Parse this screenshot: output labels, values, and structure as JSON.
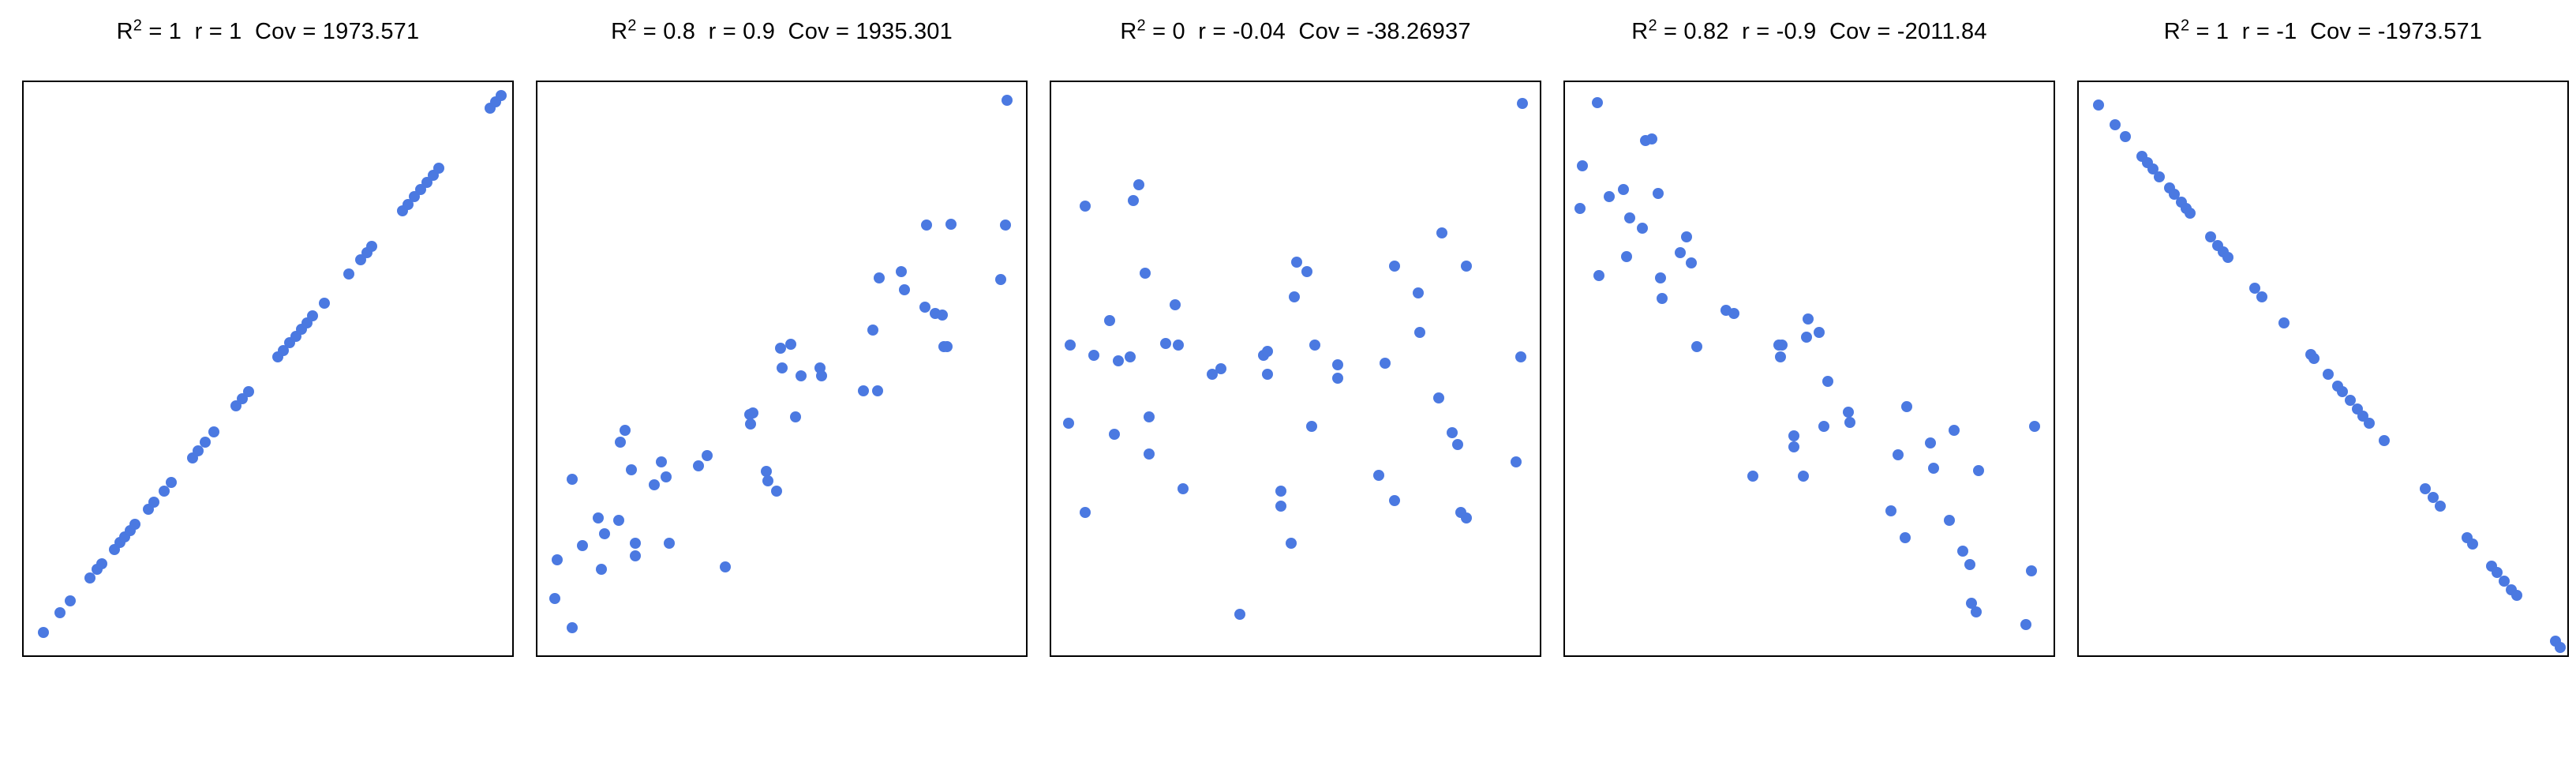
{
  "figure": {
    "background_color": "#ffffff",
    "frame_color": "#000000",
    "point_color": "#4b79e1",
    "description": "Five scatter plots showing decreasing correlation from r=1 to r=-1; frames have no axis ticks or labels"
  },
  "panels": [
    {
      "title": {
        "r_label": "R",
        "r_sup": "2",
        "rest": " = 1  r = 1  Cov = 1973.571"
      }
    },
    {
      "title": {
        "r_label": "R",
        "r_sup": "2",
        "rest": " = 0.8  r = 0.9  Cov = 1935.301"
      }
    },
    {
      "title": {
        "r_label": "R",
        "r_sup": "2",
        "rest": " = 0  r = -0.04  Cov = -38.26937"
      }
    },
    {
      "title": {
        "r_label": "R",
        "r_sup": "2",
        "rest": " = 0.82  r = -0.9  Cov = -2011.84"
      }
    },
    {
      "title": {
        "r_label": "R",
        "r_sup": "2",
        "rest": " = 1  r = -1  Cov = -1973.571"
      }
    }
  ],
  "chart_data": [
    {
      "type": "scatter",
      "title": "R^2 = 1  r = 1  Cov = 1973.571",
      "stats": {
        "r_squared": 1,
        "r": 1,
        "cov": 1973.571
      },
      "xlabel": "",
      "ylabel": "",
      "axis_ticks": "none",
      "x_range": [
        0,
        1
      ],
      "y_range": [
        0,
        1
      ],
      "point_color": "#4b79e1",
      "points": [
        [
          0.04,
          0.04
        ],
        [
          0.075,
          0.075
        ],
        [
          0.095,
          0.095
        ],
        [
          0.135,
          0.135
        ],
        [
          0.15,
          0.15
        ],
        [
          0.16,
          0.16
        ],
        [
          0.185,
          0.185
        ],
        [
          0.197,
          0.197
        ],
        [
          0.207,
          0.207
        ],
        [
          0.218,
          0.218
        ],
        [
          0.228,
          0.228
        ],
        [
          0.255,
          0.255
        ],
        [
          0.267,
          0.267
        ],
        [
          0.287,
          0.287
        ],
        [
          0.302,
          0.302
        ],
        [
          0.345,
          0.345
        ],
        [
          0.357,
          0.357
        ],
        [
          0.372,
          0.372
        ],
        [
          0.39,
          0.39
        ],
        [
          0.435,
          0.435
        ],
        [
          0.447,
          0.447
        ],
        [
          0.46,
          0.46
        ],
        [
          0.52,
          0.52
        ],
        [
          0.532,
          0.532
        ],
        [
          0.545,
          0.545
        ],
        [
          0.557,
          0.557
        ],
        [
          0.569,
          0.569
        ],
        [
          0.58,
          0.58
        ],
        [
          0.592,
          0.592
        ],
        [
          0.615,
          0.615
        ],
        [
          0.665,
          0.665
        ],
        [
          0.69,
          0.69
        ],
        [
          0.702,
          0.702
        ],
        [
          0.713,
          0.713
        ],
        [
          0.775,
          0.775
        ],
        [
          0.787,
          0.787
        ],
        [
          0.8,
          0.8
        ],
        [
          0.813,
          0.813
        ],
        [
          0.825,
          0.825
        ],
        [
          0.838,
          0.838
        ],
        [
          0.85,
          0.85
        ],
        [
          0.955,
          0.955
        ],
        [
          0.966,
          0.966
        ],
        [
          0.977,
          0.977
        ]
      ]
    },
    {
      "type": "scatter",
      "title": "R^2 = 0.8  r = 0.9  Cov = 1935.301",
      "stats": {
        "r_squared": 0.8,
        "r": 0.9,
        "cov": 1935.301
      },
      "xlabel": "",
      "ylabel": "",
      "axis_ticks": "none",
      "x_range": [
        0,
        1
      ],
      "y_range": [
        0,
        1
      ],
      "point_color": "#4b79e1",
      "points": [
        [
          0.04,
          0.167
        ],
        [
          0.036,
          0.099
        ],
        [
          0.071,
          0.048
        ],
        [
          0.071,
          0.307
        ],
        [
          0.092,
          0.191
        ],
        [
          0.124,
          0.239
        ],
        [
          0.131,
          0.15
        ],
        [
          0.138,
          0.212
        ],
        [
          0.166,
          0.236
        ],
        [
          0.169,
          0.372
        ],
        [
          0.179,
          0.392
        ],
        [
          0.193,
          0.324
        ],
        [
          0.2,
          0.195
        ],
        [
          0.2,
          0.174
        ],
        [
          0.239,
          0.297
        ],
        [
          0.253,
          0.338
        ],
        [
          0.263,
          0.311
        ],
        [
          0.27,
          0.195
        ],
        [
          0.33,
          0.331
        ],
        [
          0.347,
          0.348
        ],
        [
          0.385,
          0.154
        ],
        [
          0.434,
          0.42
        ],
        [
          0.436,
          0.403
        ],
        [
          0.441,
          0.423
        ],
        [
          0.469,
          0.321
        ],
        [
          0.471,
          0.304
        ],
        [
          0.49,
          0.287
        ],
        [
          0.497,
          0.536
        ],
        [
          0.518,
          0.543
        ],
        [
          0.501,
          0.502
        ],
        [
          0.529,
          0.416
        ],
        [
          0.539,
          0.488
        ],
        [
          0.578,
          0.502
        ],
        [
          0.581,
          0.488
        ],
        [
          0.668,
          0.461
        ],
        [
          0.696,
          0.461
        ],
        [
          0.686,
          0.567
        ],
        [
          0.7,
          0.659
        ],
        [
          0.745,
          0.669
        ],
        [
          0.752,
          0.638
        ],
        [
          0.794,
          0.608
        ],
        [
          0.797,
          0.751
        ],
        [
          0.815,
          0.597
        ],
        [
          0.829,
          0.594
        ],
        [
          0.832,
          0.539
        ],
        [
          0.839,
          0.539
        ],
        [
          0.846,
          0.752
        ],
        [
          0.961,
          0.969
        ],
        [
          0.958,
          0.751
        ],
        [
          0.948,
          0.655
        ]
      ]
    },
    {
      "type": "scatter",
      "title": "R^2 = 0  r = -0.04  Cov = -38.26937",
      "stats": {
        "r_squared": 0,
        "r": -0.04,
        "cov": -38.26937
      },
      "xlabel": "",
      "ylabel": "",
      "axis_ticks": "none",
      "x_range": [
        0,
        1
      ],
      "y_range": [
        0,
        1
      ],
      "point_color": "#4b79e1",
      "points": [
        [
          0.965,
          0.963
        ],
        [
          0.179,
          0.821
        ],
        [
          0.168,
          0.794
        ],
        [
          0.07,
          0.784
        ],
        [
          0.8,
          0.737
        ],
        [
          0.502,
          0.686
        ],
        [
          0.523,
          0.669
        ],
        [
          0.702,
          0.679
        ],
        [
          0.849,
          0.679
        ],
        [
          0.193,
          0.666
        ],
        [
          0.498,
          0.625
        ],
        [
          0.751,
          0.632
        ],
        [
          0.253,
          0.611
        ],
        [
          0.119,
          0.584
        ],
        [
          0.754,
          0.564
        ],
        [
          0.039,
          0.541
        ],
        [
          0.235,
          0.544
        ],
        [
          0.26,
          0.541
        ],
        [
          0.54,
          0.541
        ],
        [
          0.088,
          0.524
        ],
        [
          0.137,
          0.514
        ],
        [
          0.161,
          0.52
        ],
        [
          0.435,
          0.524
        ],
        [
          0.442,
          0.53
        ],
        [
          0.586,
          0.507
        ],
        [
          0.684,
          0.51
        ],
        [
          0.961,
          0.52
        ],
        [
          0.347,
          0.5
        ],
        [
          0.33,
          0.49
        ],
        [
          0.442,
          0.49
        ],
        [
          0.586,
          0.483
        ],
        [
          0.793,
          0.449
        ],
        [
          0.035,
          0.405
        ],
        [
          0.2,
          0.416
        ],
        [
          0.533,
          0.399
        ],
        [
          0.821,
          0.389
        ],
        [
          0.13,
          0.385
        ],
        [
          0.832,
          0.368
        ],
        [
          0.2,
          0.351
        ],
        [
          0.951,
          0.338
        ],
        [
          0.67,
          0.314
        ],
        [
          0.27,
          0.291
        ],
        [
          0.47,
          0.287
        ],
        [
          0.702,
          0.27
        ],
        [
          0.47,
          0.26
        ],
        [
          0.839,
          0.25
        ],
        [
          0.849,
          0.24
        ],
        [
          0.07,
          0.25
        ],
        [
          0.491,
          0.196
        ],
        [
          0.386,
          0.071
        ]
      ]
    },
    {
      "type": "scatter",
      "title": "R^2 = 0.82  r = -0.9  Cov = -2011.84",
      "stats": {
        "r_squared": 0.82,
        "r": -0.9,
        "cov": -2011.84
      },
      "xlabel": "",
      "ylabel": "",
      "axis_ticks": "none",
      "x_range": [
        0,
        1
      ],
      "y_range": [
        0,
        1
      ],
      "point_color": "#4b79e1",
      "points": [
        [
          0.066,
          0.964
        ],
        [
          0.164,
          0.898
        ],
        [
          0.178,
          0.901
        ],
        [
          0.035,
          0.854
        ],
        [
          0.09,
          0.8
        ],
        [
          0.119,
          0.812
        ],
        [
          0.191,
          0.806
        ],
        [
          0.031,
          0.78
        ],
        [
          0.133,
          0.763
        ],
        [
          0.159,
          0.745
        ],
        [
          0.248,
          0.73
        ],
        [
          0.236,
          0.703
        ],
        [
          0.126,
          0.696
        ],
        [
          0.259,
          0.685
        ],
        [
          0.069,
          0.662
        ],
        [
          0.196,
          0.658
        ],
        [
          0.198,
          0.622
        ],
        [
          0.329,
          0.602
        ],
        [
          0.345,
          0.597
        ],
        [
          0.497,
          0.587
        ],
        [
          0.495,
          0.555
        ],
        [
          0.52,
          0.563
        ],
        [
          0.437,
          0.541
        ],
        [
          0.444,
          0.541
        ],
        [
          0.441,
          0.52
        ],
        [
          0.269,
          0.538
        ],
        [
          0.538,
          0.478
        ],
        [
          0.58,
          0.424
        ],
        [
          0.583,
          0.407
        ],
        [
          0.699,
          0.434
        ],
        [
          0.53,
          0.4
        ],
        [
          0.469,
          0.383
        ],
        [
          0.469,
          0.363
        ],
        [
          0.797,
          0.393
        ],
        [
          0.962,
          0.4
        ],
        [
          0.748,
          0.37
        ],
        [
          0.682,
          0.35
        ],
        [
          0.755,
          0.326
        ],
        [
          0.846,
          0.323
        ],
        [
          0.385,
          0.313
        ],
        [
          0.488,
          0.313
        ],
        [
          0.668,
          0.252
        ],
        [
          0.787,
          0.235
        ],
        [
          0.696,
          0.205
        ],
        [
          0.815,
          0.182
        ],
        [
          0.829,
          0.159
        ],
        [
          0.955,
          0.148
        ],
        [
          0.832,
          0.091
        ],
        [
          0.841,
          0.076
        ],
        [
          0.944,
          0.054
        ]
      ]
    },
    {
      "type": "scatter",
      "title": "R^2 = 1  r = -1  Cov = -1973.571",
      "stats": {
        "r_squared": 1,
        "r": -1,
        "cov": -1973.571
      },
      "xlabel": "",
      "ylabel": "",
      "axis_ticks": "none",
      "x_range": [
        0,
        1
      ],
      "y_range": [
        0,
        1
      ],
      "point_color": "#4b79e1",
      "points": [
        [
          0.04,
          0.96
        ],
        [
          0.075,
          0.925
        ],
        [
          0.095,
          0.905
        ],
        [
          0.13,
          0.87
        ],
        [
          0.14,
          0.86
        ],
        [
          0.152,
          0.848
        ],
        [
          0.165,
          0.835
        ],
        [
          0.185,
          0.815
        ],
        [
          0.196,
          0.804
        ],
        [
          0.21,
          0.79
        ],
        [
          0.22,
          0.78
        ],
        [
          0.228,
          0.772
        ],
        [
          0.27,
          0.73
        ],
        [
          0.285,
          0.715
        ],
        [
          0.296,
          0.704
        ],
        [
          0.306,
          0.694
        ],
        [
          0.36,
          0.64
        ],
        [
          0.375,
          0.625
        ],
        [
          0.42,
          0.58
        ],
        [
          0.475,
          0.525
        ],
        [
          0.482,
          0.518
        ],
        [
          0.51,
          0.49
        ],
        [
          0.53,
          0.47
        ],
        [
          0.54,
          0.46
        ],
        [
          0.555,
          0.445
        ],
        [
          0.57,
          0.43
        ],
        [
          0.582,
          0.418
        ],
        [
          0.595,
          0.405
        ],
        [
          0.625,
          0.375
        ],
        [
          0.71,
          0.29
        ],
        [
          0.725,
          0.275
        ],
        [
          0.74,
          0.26
        ],
        [
          0.795,
          0.205
        ],
        [
          0.806,
          0.194
        ],
        [
          0.845,
          0.155
        ],
        [
          0.856,
          0.144
        ],
        [
          0.87,
          0.13
        ],
        [
          0.885,
          0.115
        ],
        [
          0.896,
          0.104
        ],
        [
          0.975,
          0.025
        ],
        [
          0.986,
          0.014
        ]
      ]
    }
  ]
}
